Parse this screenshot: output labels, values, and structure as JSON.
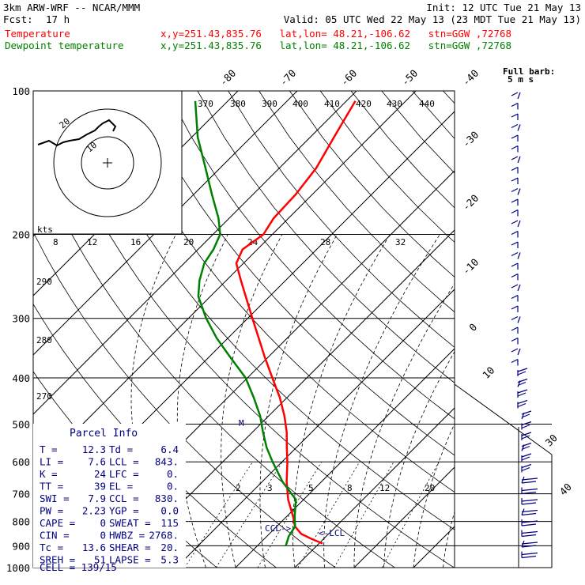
{
  "header": {
    "model": "3km ARW-WRF -- NCAR/MMM",
    "init": "Init: 12 UTC Tue 21 May 13",
    "fcst_label": "Fcst:",
    "fcst_value": "17 h",
    "valid": "Valid: 05 UTC Wed 22 May 13 (23 MDT Tue 21 May 13)",
    "temperature_line": {
      "label": "Temperature",
      "info": "x,y=251.43,835.76   lat,lon= 48.21,-106.62   stn=GGW ,72768"
    },
    "dewpoint_line": {
      "label": "Dewpoint temperature",
      "info": "x,y=251.43,835.76   lat,lon= 48.21,-106.62   stn=GGW ,72768"
    }
  },
  "colors": {
    "temperature": "#ff0000",
    "dewpoint": "#008000",
    "wind_barbs": "#000080",
    "isotherm": "#000000",
    "background": "#ffffff"
  },
  "hodograph": {
    "units_label": "kts",
    "ring_labels": [
      "10",
      "20"
    ],
    "speed_axis_labels": [
      "8",
      "12",
      "16",
      "20",
      "24",
      "28",
      "32"
    ],
    "theta_labels": [
      "370",
      "380",
      "390",
      "400",
      "410",
      "420",
      "430",
      "440"
    ]
  },
  "barb_legend": {
    "title": "Full barb:",
    "unit": "5 m s"
  },
  "parcel_info": {
    "title": "Parcel Info",
    "rows": [
      [
        "T",
        "12.3",
        "Td",
        "6.4"
      ],
      [
        "LI",
        "7.6",
        "LCL",
        "843."
      ],
      [
        "K",
        "24",
        "LFC",
        "0."
      ],
      [
        "TT",
        "39",
        "EL",
        "0."
      ],
      [
        "SWI",
        "7.9",
        "CCL",
        "830."
      ],
      [
        "PW",
        "2.23",
        "YGP",
        "0.0"
      ],
      [
        "CAPE",
        "0",
        "SWEAT",
        "115"
      ],
      [
        "CIN",
        "0",
        "HWBZ",
        "2768."
      ],
      [
        "Tc",
        "13.6",
        "SHEAR",
        "20."
      ],
      [
        "SREH",
        "51",
        "LAPSE",
        "5.3"
      ]
    ],
    "cell": "CELL = 139/15"
  },
  "annotations": {
    "ccl": "CCL->",
    "lcl": "<-LCL",
    "m_marker": "M",
    "mixing_ratio_labels": [
      "2",
      "3",
      "5",
      "8",
      "12",
      "20"
    ],
    "lower_theta_labels": [
      "290",
      "280",
      "270"
    ],
    "right_labels": [
      "30",
      "40"
    ]
  },
  "chart_data": {
    "type": "line",
    "title": "",
    "yscale": "log",
    "yreverse": true,
    "ylim": [
      1000,
      100
    ],
    "ylabel": "",
    "xlabel": "",
    "pressure_ticks": [
      100,
      200,
      300,
      400,
      500,
      600,
      700,
      800,
      900,
      1000
    ],
    "isotherm_labels_top": [
      -80,
      -70,
      -60,
      -50,
      -40
    ],
    "isotherm_labels_right": [
      -30,
      -20,
      -10,
      0,
      10
    ],
    "series": [
      {
        "name": "Temperature",
        "color": "#ff0000",
        "p": [
          890,
          870,
          850,
          820,
          780,
          720,
          660,
          600,
          560,
          520,
          480,
          440,
          400,
          360,
          330,
          300,
          270,
          250,
          230,
          215,
          200,
          185,
          165,
          145,
          125,
          105
        ],
        "t": [
          10.6,
          7.9,
          5.4,
          3.1,
          1.0,
          -2.6,
          -5.9,
          -9.1,
          -11.6,
          -14.2,
          -17.4,
          -21.2,
          -25.8,
          -30.8,
          -34.8,
          -39.2,
          -44.0,
          -47.5,
          -51.2,
          -52.5,
          -51.5,
          -52.5,
          -52.8,
          -53.8,
          -56.0,
          -58.5
        ]
      },
      {
        "name": "Dewpoint temperature",
        "color": "#008000",
        "p": [
          900,
          860,
          820,
          780,
          720,
          660,
          600,
          560,
          520,
          480,
          440,
          400,
          360,
          330,
          300,
          270,
          250,
          230,
          215,
          200,
          185,
          165,
          145,
          125,
          105
        ],
        "t": [
          4.8,
          3.7,
          3.1,
          1.3,
          -1.3,
          -6.6,
          -11.6,
          -15.0,
          -18.2,
          -21.5,
          -25.6,
          -30.3,
          -36.7,
          -41.9,
          -47.0,
          -52.0,
          -54.5,
          -56.6,
          -57.4,
          -58.8,
          -61.8,
          -66.9,
          -72.5,
          -79.0,
          -85.5
        ]
      }
    ]
  }
}
